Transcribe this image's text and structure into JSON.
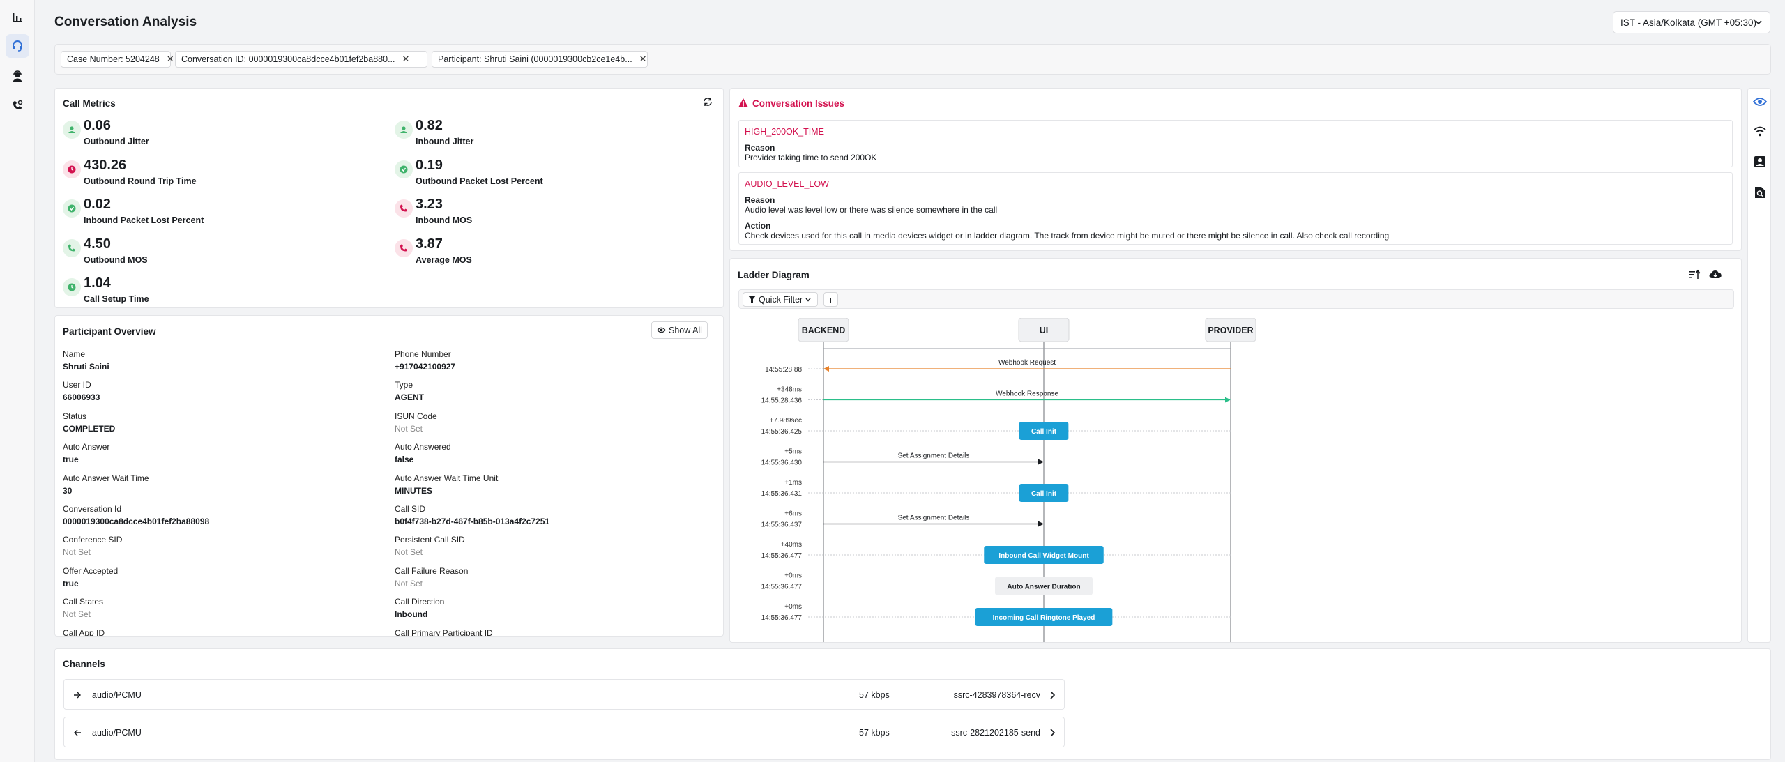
{
  "page": {
    "title": "Conversation Analysis",
    "timezone": "IST - Asia/Kolkata (GMT +05:30)"
  },
  "nav": {
    "icons": [
      "analytics-icon",
      "headset-icon",
      "agent-icon",
      "phone-settings-icon"
    ]
  },
  "filters": [
    {
      "label": "Case Number: 5204248"
    },
    {
      "label": "Conversation ID: 0000019300ca8dcce4b01fef2ba880..."
    },
    {
      "label": "Participant: Shruti Saini (0000019300cb2ce1e4b..."
    }
  ],
  "call_metrics": {
    "title": "Call Metrics",
    "items": [
      {
        "value": "0.06",
        "label": "Outbound Jitter",
        "status": "ok",
        "icon": "person-icon"
      },
      {
        "value": "0.82",
        "label": "Inbound Jitter",
        "status": "ok",
        "icon": "person-icon"
      },
      {
        "value": "430.26",
        "label": "Outbound Round Trip Time",
        "status": "bad",
        "icon": "clock-icon"
      },
      {
        "value": "0.19",
        "label": "Outbound Packet Lost Percent",
        "status": "ok",
        "icon": "packet-icon"
      },
      {
        "value": "0.02",
        "label": "Inbound Packet Lost Percent",
        "status": "ok",
        "icon": "packet-icon"
      },
      {
        "value": "3.23",
        "label": "Inbound MOS",
        "status": "bad",
        "icon": "phone-icon"
      },
      {
        "value": "4.50",
        "label": "Outbound MOS",
        "status": "ok",
        "icon": "phone-icon"
      },
      {
        "value": "3.87",
        "label": "Average MOS",
        "status": "bad",
        "icon": "phone-icon"
      },
      {
        "value": "1.04",
        "label": "Call Setup Time",
        "status": "ok",
        "icon": "clock-icon"
      }
    ]
  },
  "participant": {
    "title": "Participant Overview",
    "show_all": "Show All",
    "fields": [
      {
        "label": "Name",
        "value": "Shruti Saini"
      },
      {
        "label": "Phone Number",
        "value": "+917042100927"
      },
      {
        "label": "User ID",
        "value": "66006933"
      },
      {
        "label": "Type",
        "value": "AGENT"
      },
      {
        "label": "Status",
        "value": "COMPLETED"
      },
      {
        "label": "ISUN Code",
        "value": "Not Set"
      },
      {
        "label": "Auto Answer",
        "value": "true"
      },
      {
        "label": "Auto Answered",
        "value": "false"
      },
      {
        "label": "Auto Answer Wait Time",
        "value": "30"
      },
      {
        "label": "Auto Answer Wait Time Unit",
        "value": "MINUTES"
      },
      {
        "label": "Conversation Id",
        "value": "0000019300ca8dcce4b01fef2ba88098"
      },
      {
        "label": "Call SID",
        "value": "b0f4f738-b27d-467f-b85b-013a4f2c7251"
      },
      {
        "label": "Conference SID",
        "value": "Not Set"
      },
      {
        "label": "Persistent Call SID",
        "value": "Not Set"
      },
      {
        "label": "Offer Accepted",
        "value": "true"
      },
      {
        "label": "Call Failure Reason",
        "value": "Not Set"
      },
      {
        "label": "Call States",
        "value": "Not Set"
      },
      {
        "label": "Call Direction",
        "value": "Inbound"
      },
      {
        "label": "Call App ID",
        "value": ""
      },
      {
        "label": "Call Primary Participant ID",
        "value": ""
      }
    ]
  },
  "issues": {
    "title": "Conversation Issues",
    "items": [
      {
        "code": "HIGH_200OK_TIME",
        "reason_label": "Reason",
        "reason": "Provider taking time to send 200OK"
      },
      {
        "code": "AUDIO_LEVEL_LOW",
        "reason_label": "Reason",
        "reason": "Audio level was level low or there was silence somewhere in the call",
        "action_label": "Action",
        "action": "Check devices used for this call in media devices widget or in ladder diagram. The track from device might be muted or there might be silence in call. Also check call recording"
      }
    ]
  },
  "ladder": {
    "title": "Ladder Diagram",
    "quick_filter": "Quick Filter",
    "add": "+",
    "lanes": [
      "BACKEND",
      "UI",
      "PROVIDER"
    ],
    "events": [
      {
        "time": "14:55:28.88",
        "kind": "arrow",
        "from": "PROVIDER",
        "to": "BACKEND",
        "label": "Webhook Request",
        "color": "#e8822b"
      },
      {
        "delta": "+348ms"
      },
      {
        "time": "14:55:28.436",
        "kind": "arrow",
        "from": "BACKEND",
        "to": "PROVIDER",
        "label": "Webhook Response",
        "color": "#2bbf8a"
      },
      {
        "delta": "+7.989sec"
      },
      {
        "time": "14:55:36.425",
        "kind": "box",
        "lane": "UI",
        "label": "Call Init",
        "style": "blue"
      },
      {
        "delta": "+5ms"
      },
      {
        "time": "14:55:36.430",
        "kind": "arrow",
        "from": "BACKEND",
        "to": "UI",
        "label": "Set Assignment Details",
        "color": "#1a1d21"
      },
      {
        "delta": "+1ms"
      },
      {
        "time": "14:55:36.431",
        "kind": "box",
        "lane": "UI",
        "label": "Call Init",
        "style": "blue"
      },
      {
        "delta": "+6ms"
      },
      {
        "time": "14:55:36.437",
        "kind": "arrow",
        "from": "BACKEND",
        "to": "UI",
        "label": "Set Assignment Details",
        "color": "#1a1d21"
      },
      {
        "delta": "+40ms"
      },
      {
        "time": "14:55:36.477",
        "kind": "box",
        "lane": "UI",
        "label": "Inbound Call Widget Mount",
        "style": "blue"
      },
      {
        "delta": "+0ms"
      },
      {
        "time": "14:55:36.477",
        "kind": "box",
        "lane": "UI",
        "label": "Auto Answer Duration",
        "style": "gray"
      },
      {
        "delta": "+0ms"
      },
      {
        "time": "14:55:36.477",
        "kind": "box",
        "lane": "UI",
        "label": "Incoming Call Ringtone Played",
        "style": "blue"
      }
    ]
  },
  "right_rail": {
    "icons": [
      "eye-icon",
      "wifi-icon",
      "device-icon",
      "document-search-icon"
    ]
  },
  "channels": {
    "title": "Channels",
    "items": [
      {
        "direction": "outbound",
        "codec": "audio/PCMU",
        "bitrate": "57 kbps",
        "ssrc": "ssrc-4283978364-recv"
      },
      {
        "direction": "inbound",
        "codec": "audio/PCMU",
        "bitrate": "57 kbps",
        "ssrc": "ssrc-2821202185-send"
      }
    ]
  },
  "colors": {
    "accent": "#2f6fd6",
    "danger": "#d3124f",
    "success": "#3fb36b",
    "event_blue": "#1ba0d6"
  }
}
